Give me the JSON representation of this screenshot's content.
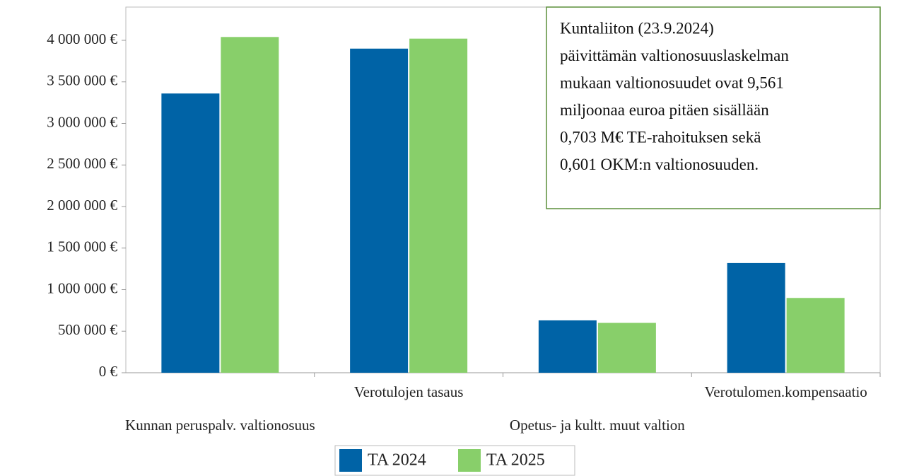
{
  "chart_data": {
    "type": "bar",
    "categories": [
      "Kunnan peruspalv. valtionosuus",
      "Verotulojen tasaus",
      "Opetus- ja kultt. muut valtion",
      "Verotulomen.kompensaatio"
    ],
    "series": [
      {
        "name": "TA 2024",
        "color": "#0063a6",
        "values": [
          3360000,
          3900000,
          630000,
          1320000
        ]
      },
      {
        "name": "TA 2025",
        "color": "#88cf6a",
        "values": [
          4040000,
          4020000,
          600000,
          900000
        ]
      }
    ],
    "ylim": [
      0,
      4400000
    ],
    "yticks": [
      {
        "value": 0,
        "label": "0 €"
      },
      {
        "value": 500000,
        "label": "500 000 €"
      },
      {
        "value": 1000000,
        "label": "1 000 000 €"
      },
      {
        "value": 1500000,
        "label": "1 500 000 €"
      },
      {
        "value": 2000000,
        "label": "2 000 000 €"
      },
      {
        "value": 2500000,
        "label": "2 500 000 €"
      },
      {
        "value": 3000000,
        "label": "3 000 000 €"
      },
      {
        "value": 3500000,
        "label": "3 500 000 €"
      },
      {
        "value": 4000000,
        "label": "4 000 000 €"
      }
    ],
    "annotation": [
      "Kuntaliiton (23.9.2024)",
      "päivittämän valtionosuuslaskelman",
      "mukaan valtionosuudet ovat 9,561",
      "miljoonaa euroa pitäen sisällään",
      "0,703 M€ TE-rahoituksen sekä",
      "0,601 OKM:n valtionosuuden."
    ],
    "legend": "bottom"
  }
}
